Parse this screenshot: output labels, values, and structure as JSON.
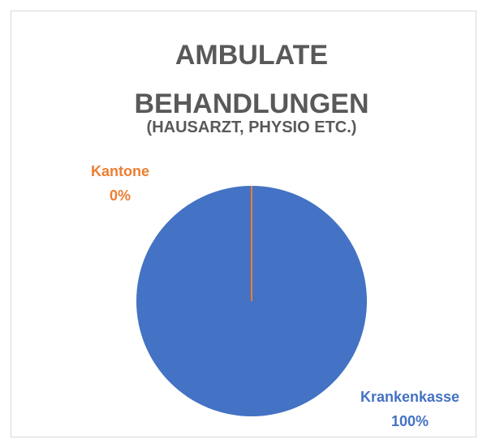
{
  "chart_data": {
    "type": "pie",
    "title": "AMBULATE BEHANDLUNGEN",
    "subtitle": "(HAUSARZT, PHYSIO ETC.)",
    "categories": [
      "Kantone",
      "Krankenkasse"
    ],
    "values": [
      0,
      100
    ],
    "value_labels": [
      "0%",
      "100%"
    ],
    "colors": [
      "#ed7d31",
      "#4472c4"
    ]
  }
}
